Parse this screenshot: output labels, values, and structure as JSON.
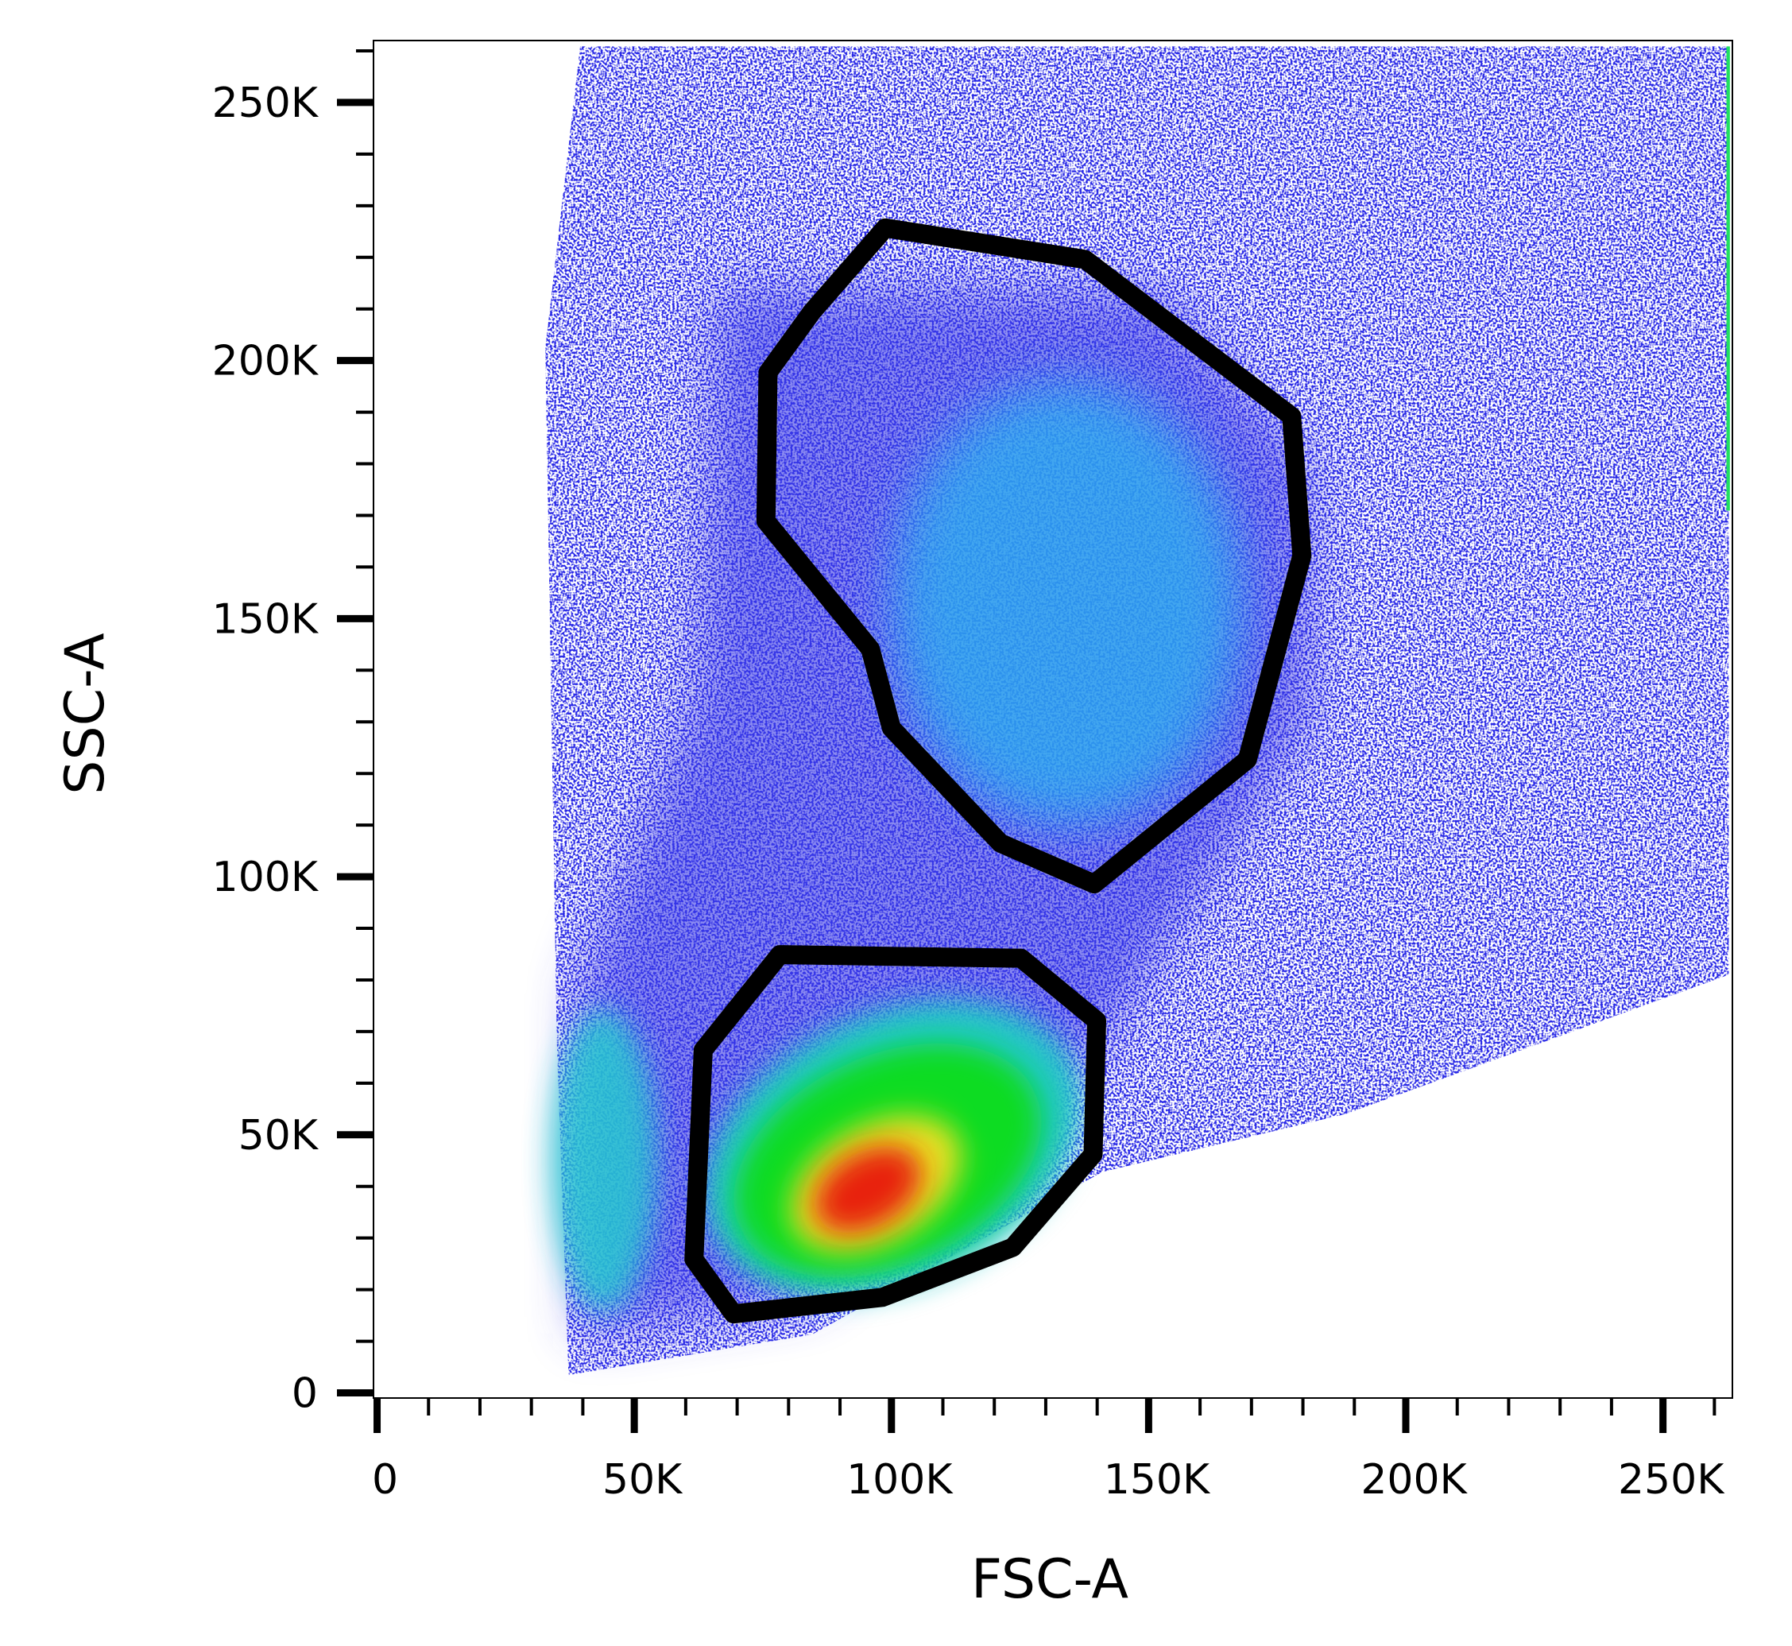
{
  "chart_data": {
    "type": "scatter",
    "x_label": "FSC-A",
    "y_label": "SSC-A",
    "xlim": [
      -700,
      263500
    ],
    "ylim": [
      -1000,
      262000
    ],
    "xticks": [
      0,
      {
        "value": 50000,
        "label": "50K"
      },
      {
        "value": 100000,
        "label": "100K"
      },
      {
        "value": 150000,
        "label": "150K"
      },
      {
        "value": 200000,
        "label": "200K"
      },
      {
        "value": 250000,
        "label": "250K"
      }
    ],
    "yticks": [
      0,
      {
        "value": 50000,
        "label": "50K"
      },
      {
        "value": 100000,
        "label": "100K"
      },
      {
        "value": 150000,
        "label": "150K"
      },
      {
        "value": 200000,
        "label": "200K"
      },
      {
        "value": 250000,
        "label": "250K"
      }
    ],
    "x_minor_ticks": [
      10000,
      20000,
      30000,
      40000,
      60000,
      70000,
      80000,
      90000,
      110000,
      120000,
      130000,
      140000,
      160000,
      170000,
      180000,
      190000,
      210000,
      220000,
      230000,
      240000,
      260000
    ],
    "y_minor_ticks": [
      10000,
      20000,
      30000,
      40000,
      60000,
      70000,
      80000,
      90000,
      110000,
      120000,
      130000,
      140000,
      160000,
      170000,
      180000,
      190000,
      210000,
      220000,
      230000,
      240000,
      260000
    ],
    "gate_color": "#000000",
    "gates": [
      {
        "x": [
          98800,
          137600,
          177800,
          179800,
          169200,
          139400,
          121200,
          100000,
          95900,
          75600,
          76000,
          84600
        ],
        "y": [
          225700,
          219600,
          189200,
          162200,
          122700,
          98600,
          106500,
          128800,
          144100,
          168900,
          197700,
          209500
        ]
      },
      {
        "x": [
          78300,
          125200,
          139900,
          139200,
          123600,
          98200,
          69300,
          61600,
          63400
        ],
        "y": [
          84900,
          84200,
          72100,
          46200,
          28200,
          18500,
          15300,
          25900,
          66400
        ]
      }
    ]
  }
}
